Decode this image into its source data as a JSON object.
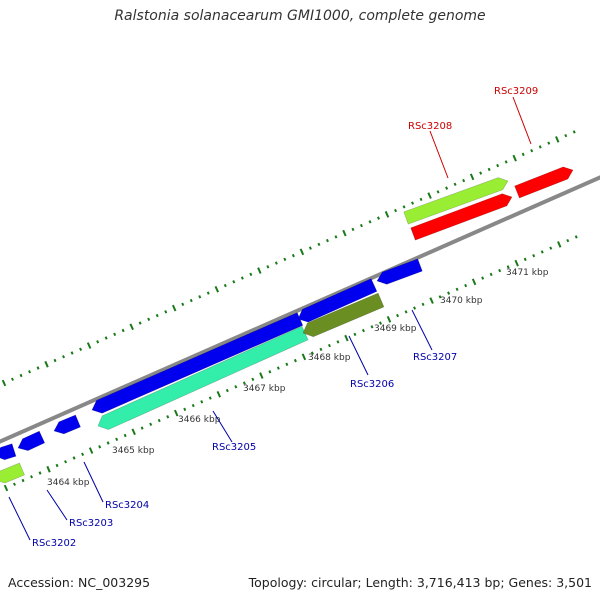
{
  "title": "Ralstonia solanacearum GMI1000, complete genome",
  "footer": {
    "accession": "Accession: NC_003295",
    "stats": "Topology: circular; Length: 3,716,413 bp; Genes: 3,501"
  },
  "colors": {
    "backbone": "#888888",
    "tick": "#1a7a1a",
    "forward_cds": "#ff0000",
    "reverse_cds": "#0000ee",
    "forward_label": "#cc0000",
    "reverse_label": "#0000aa",
    "rna_light": "#99ee33",
    "rna_dark": "#6b8e23",
    "teal": "#33eeaa"
  },
  "tick_labels": [
    "3464 kbp",
    "3465 kbp",
    "3466 kbp",
    "3467 kbp",
    "3468 kbp",
    "3469 kbp",
    "3470 kbp",
    "3471 kbp"
  ],
  "genes": [
    {
      "label": "RSc3202",
      "strand": "reverse",
      "color_key": "rna_light"
    },
    {
      "label": "RSc3203",
      "strand": "reverse",
      "color_key": "reverse_cds"
    },
    {
      "label": "RSc3204",
      "strand": "reverse",
      "color_key": "reverse_cds"
    },
    {
      "label": "RSc3205",
      "strand": "reverse",
      "color_key": "teal"
    },
    {
      "label": "RSc3206",
      "strand": "reverse",
      "color_key": "reverse_cds"
    },
    {
      "label": "RSc3207",
      "strand": "reverse",
      "color_key": "rna_dark"
    },
    {
      "label": "RSc3208",
      "strand": "forward",
      "color_key": "rna_light"
    },
    {
      "label": "RSc3209",
      "strand": "forward",
      "color_key": "forward_cds"
    }
  ]
}
